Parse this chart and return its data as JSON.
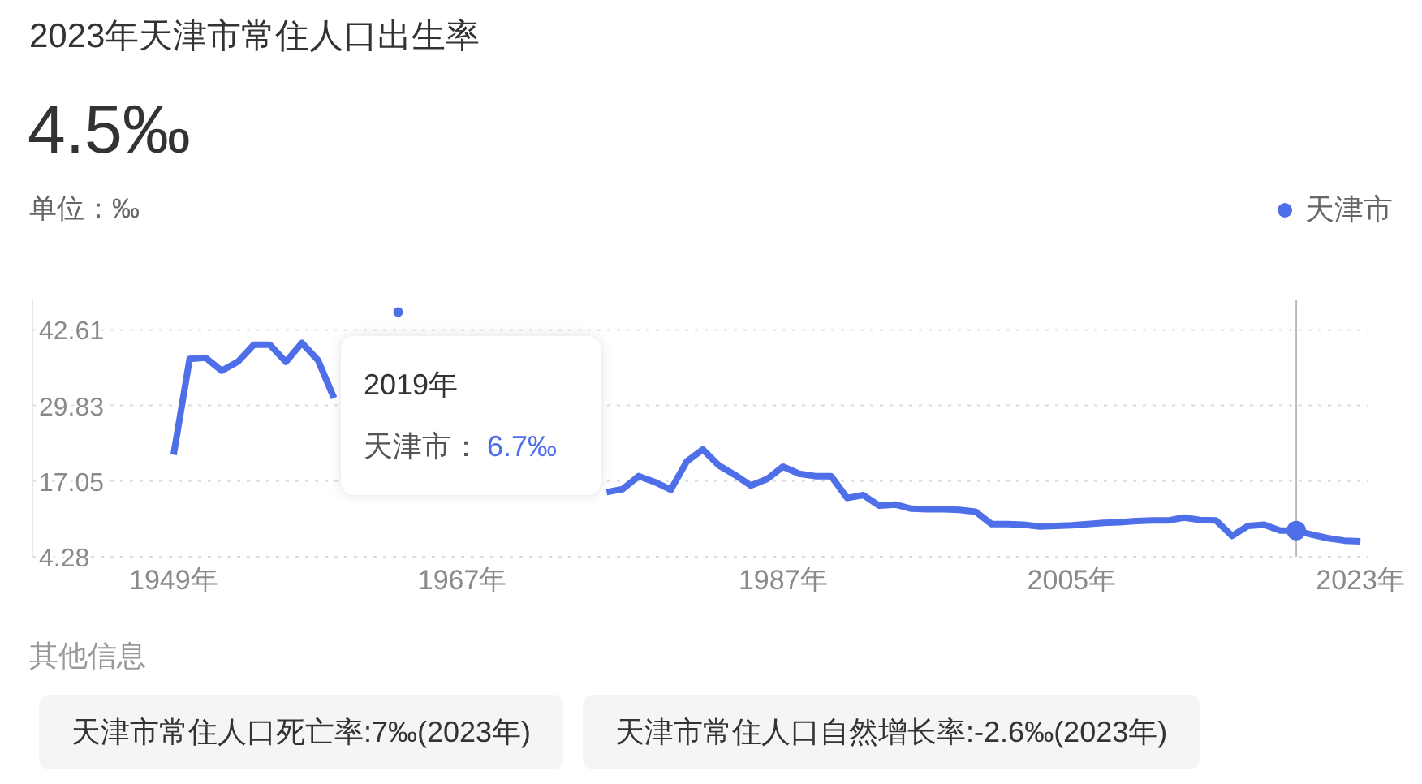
{
  "chart_data": {
    "type": "line",
    "title": "2023年天津市常住人口出生率",
    "subtitle": "4.5‰",
    "ylabel": "单位：‰",
    "x": [
      1949,
      1950,
      1951,
      1952,
      1953,
      1954,
      1955,
      1956,
      1957,
      1958,
      1959,
      1960,
      1961,
      1962,
      1963,
      1964,
      1965,
      1966,
      1967,
      1968,
      1969,
      1970,
      1971,
      1972,
      1973,
      1974,
      1975,
      1976,
      1977,
      1978,
      1979,
      1980,
      1981,
      1982,
      1983,
      1984,
      1985,
      1986,
      1987,
      1988,
      1989,
      1990,
      1991,
      1992,
      1993,
      1994,
      1995,
      1996,
      1997,
      1998,
      1999,
      2000,
      2001,
      2002,
      2003,
      2004,
      2005,
      2006,
      2007,
      2008,
      2009,
      2010,
      2011,
      2012,
      2013,
      2014,
      2015,
      2016,
      2017,
      2018,
      2019,
      2020,
      2021,
      2022,
      2023
    ],
    "series": [
      {
        "name": "天津市",
        "color": "#4f6fe8",
        "values": [
          21.5,
          37.7,
          37.9,
          35.7,
          37.2,
          40.1,
          40.1,
          37.2,
          40.4,
          37.5,
          31.1,
          null,
          null,
          null,
          45.6,
          null,
          null,
          null,
          null,
          null,
          null,
          null,
          null,
          null,
          null,
          null,
          null,
          15.2,
          15.7,
          17.9,
          16.9,
          15.6,
          20.4,
          22.4,
          19.7,
          18.1,
          16.3,
          17.4,
          19.5,
          18.3,
          17.9,
          17.9,
          14.2,
          14.7,
          12.9,
          13.1,
          12.4,
          12.3,
          12.3,
          12.2,
          11.9,
          9.8,
          9.8,
          9.7,
          9.4,
          9.5,
          9.6,
          9.8,
          10.0,
          10.1,
          10.3,
          10.4,
          10.4,
          10.9,
          10.5,
          10.4,
          7.8,
          9.5,
          9.7,
          8.7,
          8.7,
          8.0,
          7.4,
          7.0,
          6.9
        ]
      },
      {
        "type": "scatter",
        "x": [
          2019
        ],
        "color": "#4f6fe8",
        "marker": "circle",
        "values": [
          8.7
        ]
      }
    ],
    "marker": "none",
    "grid": "y",
    "legend": "top right",
    "xlim": [
      1940.2,
      2023.5
    ],
    "xticks": [
      {
        "value": 1949,
        "label": "1949年"
      },
      {
        "value": 1967,
        "label": "1967年"
      },
      {
        "value": 1987,
        "label": "1987年"
      },
      {
        "value": 2005,
        "label": "2005年"
      },
      {
        "value": 2023,
        "label": "2023年"
      }
    ],
    "ylim": [
      4.28,
      47.6
    ],
    "yticks": [
      4.28,
      17.05,
      29.83,
      42.61
    ],
    "ref_lines": [
      {
        "axis": "x",
        "value": 2019,
        "color": "#bbbbbb"
      }
    ],
    "annotations": [
      "2019年",
      "天津市：",
      "6.7‰",
      "其他信息",
      "天津市常住人口死亡率:7‰(2023年)",
      "天津市常住人口自然增长率:-2.6‰(2023年)"
    ]
  }
}
